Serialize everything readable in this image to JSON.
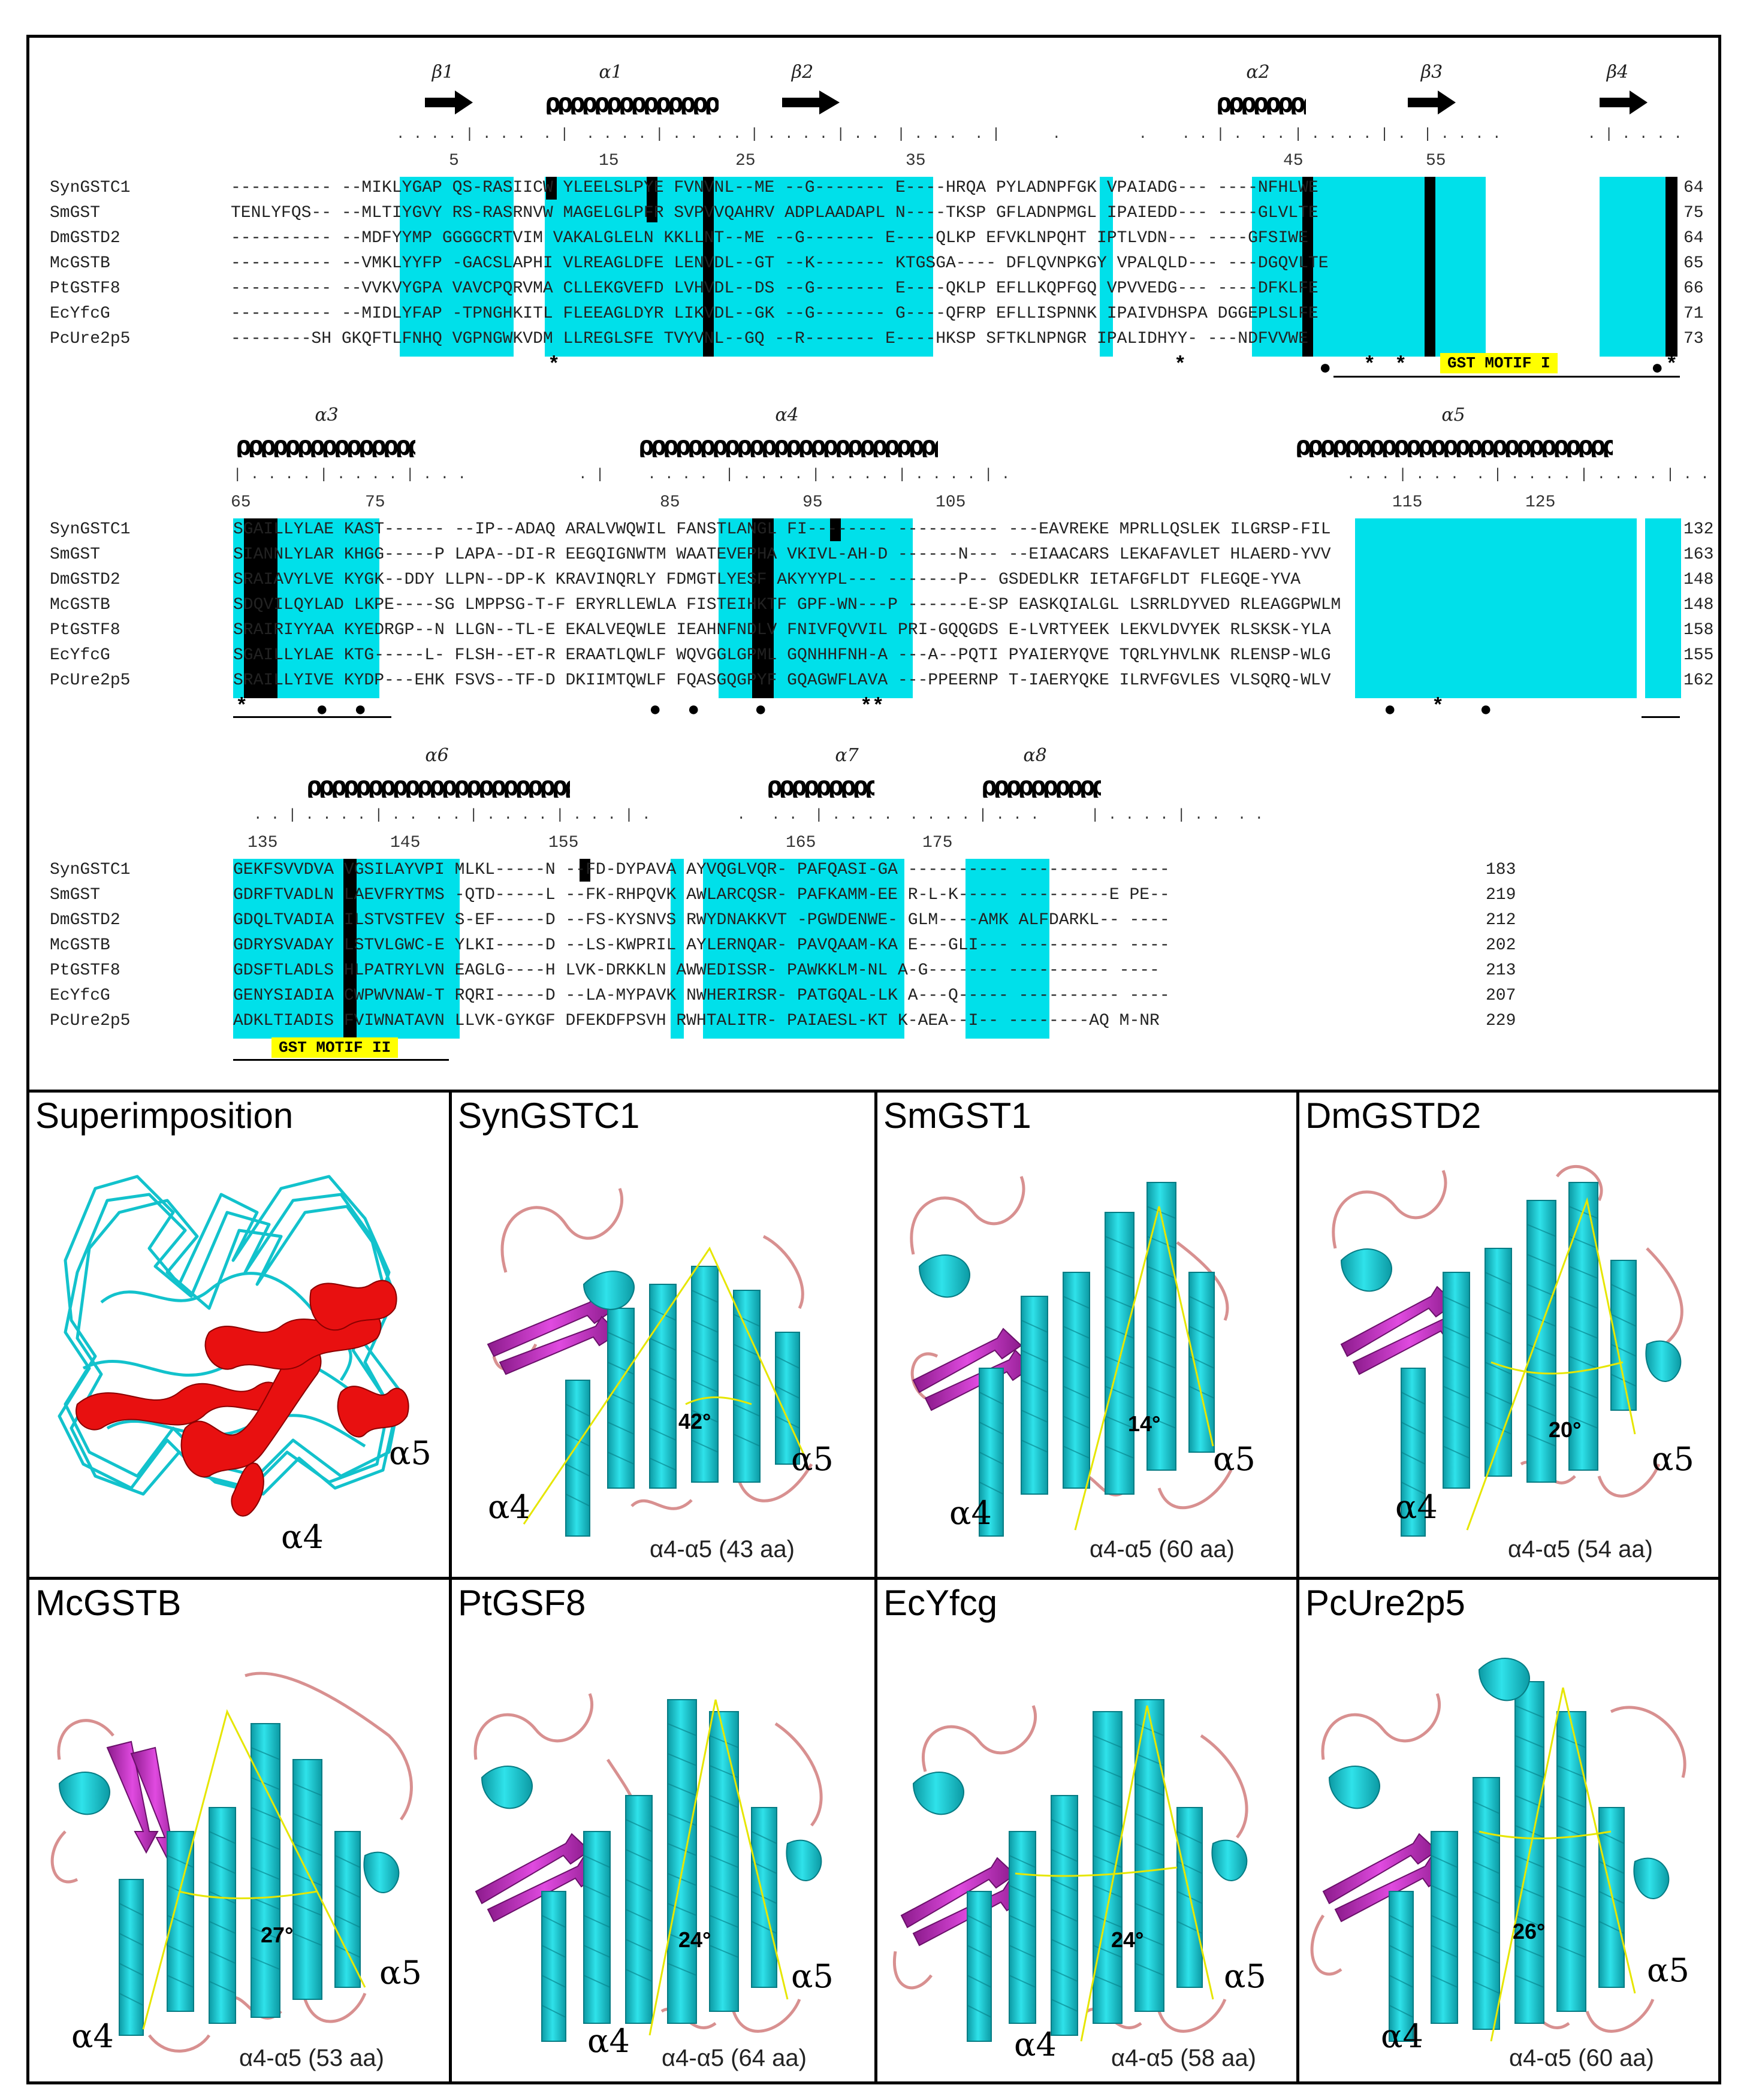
{
  "alignment": {
    "sequence_names": [
      "SynGSTC1",
      "SmGST",
      "DmGSTD2",
      "McGSTB",
      "PtGSTF8",
      "EcYfcG",
      "PcUre2p5"
    ],
    "blocks": [
      {
        "structure_labels": [
          "β1",
          "α1",
          "β2",
          "α2",
          "β3",
          "β4"
        ],
        "ruler_numbers": [
          "5",
          "15",
          "25",
          "35",
          "45",
          "55"
        ],
        "sequences": [
          "---------- --MIKLYGAP QS-RASIICW YLEELSLPYE FVNVNL--ME --G------- E----HRQA PYLADNPFGK VPAIADG--- ----NFHLWE",
          "TENLYFQS-- --MLTIYGVY RS-RASRNVW MAGELGLPFR SVPVVQAHRV ADPLAADAPL N----TKSP GFLADNPMGL IPAIEDD--- ----GLVLTE",
          "---------- --MDFYYMP GGGGCRTVIM VAKALGLELN KKLLNT--ME --G------- E----QLKP EFVKLNPQHT IPTLVDN--- ----GFSIWE",
          "---------- --VMKLYYFP -GACSLAPHI VLREAGLDFE LENVDL--GT --K------- KTGSGA---- DFLQVNPKGY VPALQLD--- ---DGQVLTE",
          "---------- --VVKVYGPA VAVCPQRVMA CLLEKGVEFD LVHVDL--DS --G------- E----QKLP EFLLKQPFGQ VPVVEDG--- ----DFKLFE",
          "---------- --MIDLYFAP -TPNGHKITL FLEEAGLDYR LIKVDL--GK --G------- G----QFRP EFLLISPNNK IPAIVDHSPA DGGEPLSLFE",
          "--------SH GKQFTLFNHQ VGPNGWKVDM LLREGLSFE TVYVNL--GQ --R------- E----HKSP SFTKLNPNGR IPALIDHYY- ---NDFVVWE"
        ],
        "end_numbers": [
          "64",
          "75",
          "64",
          "65",
          "66",
          "71",
          "73"
        ],
        "motif": "GST MOTIF I"
      },
      {
        "structure_labels": [
          "α3",
          "α4",
          "α5"
        ],
        "ruler_numbers": [
          "65",
          "75",
          "85",
          "95",
          "105",
          "115",
          "125"
        ],
        "sequences": [
          "SGAILLYLAE KAST------ --IP--ADAQ ARALVWQWIL FANSTLANGL FI-------- ---------- ---EAVREKE MPRLLQSLEK ILGRSP-FIL",
          "SIANNLYLAR KHGG-----P LAPA--DI-R EEGQIGNWTM WAATEVEPHA VKIVL-AH-D ------N--- --EIAACARS LEKAFAVLET HLAERD-YVV",
          "SRAIAVYLVE KYGK--DDY LLPN--DP-K KRAVINQRLY FDMGTLYESF AKYYYPL--- -------P-- GSDEDLKR IETAFGFLDT FLEGQE-YVA",
          "SDQVILQYLAD LKPE----SG LMPPSG-T-F ERYRLLEWLA FISTEIHKTF GPF-WN---P ------E-SP EASKQIALGL LSRRLDYVED RLEAGGPWLM",
          "SRAIRIYYAA KYEDRGP--N LLGN--TL-E EKALVEQWLE IEAHNFNDLV FNIVFQVVIL PRI-GQQGDS E-LVRTYEEK LEKVLDVYEK RLSKSK-YLA",
          "SGAILLYLAE KTG-----L- FLSH--ET-R ERAATLQWLF WQVGGLGPML GQNHHFNH-A ---A--PQTI PYAIERYQVE TQRLYHVLNK RLENSP-WLG",
          "SRAILLYIVE KYDP---EHK FSVS--TF-D DKIIMTQWLF FQASGQGPYF GQAGWFLAVA ---PPEERNP T-IAERYQKE ILRVFGVLES VLSQRQ-WLV"
        ],
        "end_numbers": [
          "132",
          "163",
          "148",
          "148",
          "158",
          "155",
          "162"
        ]
      },
      {
        "structure_labels": [
          "α6",
          "α7",
          "α8"
        ],
        "ruler_numbers": [
          "135",
          "145",
          "155",
          "165",
          "175"
        ],
        "sequences": [
          "GEKFSVVDVA VGSILAYVPI MLKL-----N --FD-DYPAVA AYVQGLVQR- PAFQASI-GA ---------- ---------- ----",
          "GDRFTVADLN LAEVFRYTMS -QTD-----L --FK-RHPQVK AWLARCQSR- PAFKAMM-EE R-L-K----- ---------E PE--",
          "GDQLTVADIA ILSTVSTFEV S-EF-----D --FS-KYSNVS RWYDNAKKVT -PGWDENWE- GLM----AMK ALFDARKL-- ----",
          "GDRYSVADAY LSTVLGWC-E YLKI-----D --LS-KWPRIL AYLERNQAR- PAVQAAM-KA E---GLI--- ---------- ----",
          "GDSFTLADLS HLPATRYLVN EAGLG----H LVK-DRKKLN AWWEDISSR- PAWKKLM-NL A-G------- ---------- ----",
          "GENYSIADIA CWPWVNAW-T RQRI-----D --LA-MYPAVK NWHERIRSR- PATGQAL-LK A---Q----- ---------- ----",
          "ADKLTIADIS FVIWNATAVN LLVK-GYKGF DFEKDFPSVH RWHTALITR- PAIAESL-KT K-AEA--I-- --------AQ M-NR"
        ],
        "end_numbers": [
          "183",
          "219",
          "212",
          "202",
          "213",
          "207",
          "229"
        ],
        "motif": "GST MOTIF II"
      }
    ]
  },
  "panels": [
    {
      "title": "Superimposition",
      "helix4": "α4",
      "helix5": "α5"
    },
    {
      "title": "SynGSTC1",
      "angle": "42°",
      "helix4": "α4",
      "helix5": "α5",
      "caption": "α4-α5 (43 aa)"
    },
    {
      "title": "SmGST1",
      "angle": "14°",
      "helix4": "α4",
      "helix5": "α5",
      "caption": "α4-α5 (60 aa)"
    },
    {
      "title": "DmGSTD2",
      "angle": "20°",
      "helix4": "α4",
      "helix5": "α5",
      "caption": "α4-α5 (54 aa)"
    },
    {
      "title": "McGSTB",
      "angle": "27°",
      "helix4": "α4",
      "helix5": "α5",
      "caption": "α4-α5 (53 aa)"
    },
    {
      "title": "PtGSF8",
      "angle": "24°",
      "helix4": "α4",
      "helix5": "α5",
      "caption": "α4-α5 (64 aa)"
    },
    {
      "title": "EcYfcg",
      "angle": "24°",
      "helix4": "α4",
      "helix5": "α5",
      "caption": "α4-α5 (58 aa)"
    },
    {
      "title": "PcUre2p5",
      "angle": "26°",
      "helix4": "α4",
      "helix5": "α5",
      "caption": "α4-α5 (60 aa)"
    }
  ],
  "colors": {
    "conserved_highlight": "#00e0ea",
    "identical_highlight": "#000000",
    "motif_highlight": "#ffff00",
    "helix": "#18c6cc",
    "strand": "#cc33cc",
    "loop": "#d89090",
    "superimposed_helix": "#e81010"
  }
}
